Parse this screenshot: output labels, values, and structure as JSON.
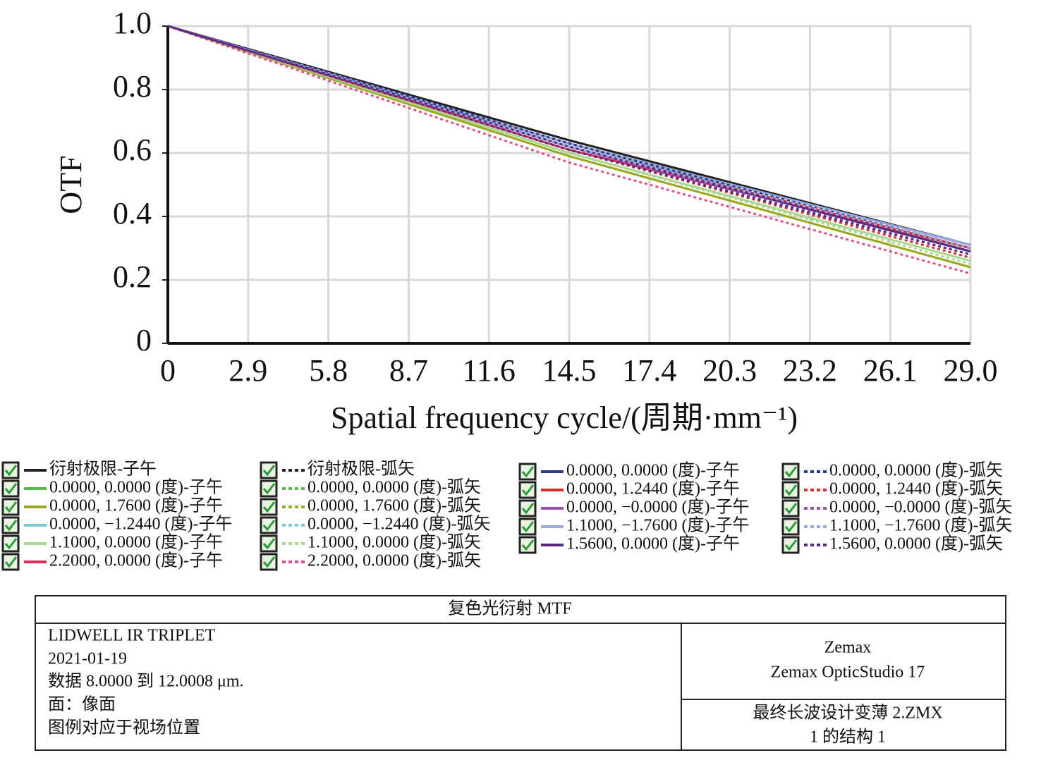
{
  "chart_data": {
    "type": "line",
    "xlabel": "Spatial frequency cycle/(周期·mm⁻¹)",
    "ylabel": "OTF",
    "x": [
      0,
      2.9,
      5.8,
      8.7,
      11.6,
      14.5,
      17.4,
      20.3,
      23.2,
      26.1,
      29
    ],
    "xlim": [
      0,
      29
    ],
    "xticks": [
      0,
      2.9,
      5.8,
      8.7,
      11.6,
      14.5,
      17.4,
      20.3,
      23.2,
      26.1,
      {
        "value": 29,
        "label": "29.0"
      }
    ],
    "ylim": [
      0,
      1
    ],
    "yticks": [
      0,
      0.2,
      0.4,
      0.6,
      0.8,
      {
        "value": 1,
        "label": "1.0"
      }
    ],
    "grid": true,
    "series": [
      {
        "name": "衍射极限-子午",
        "color": "#222222",
        "dashed": false,
        "values": [
          1,
          0.928,
          0.856,
          0.784,
          0.712,
          0.64,
          0.574,
          0.508,
          0.442,
          0.376,
          0.31
        ]
      },
      {
        "name": "0.0000, 0.0000 (度)-子午",
        "color": "#5cb848",
        "dashed": false,
        "values": [
          1,
          0.924,
          0.848,
          0.772,
          0.696,
          0.62,
          0.554,
          0.488,
          0.422,
          0.356,
          0.29
        ]
      },
      {
        "name": "0.0000, 1.7600 (度)-子午",
        "color": "#9aa820",
        "dashed": false,
        "values": [
          1,
          0.918,
          0.836,
          0.754,
          0.672,
          0.59,
          0.52,
          0.45,
          0.38,
          0.31,
          0.24
        ]
      },
      {
        "name": "0.0000, −1.2440 (度)-子午",
        "color": "#7cc8d0",
        "dashed": false,
        "values": [
          1,
          0.926,
          0.852,
          0.778,
          0.704,
          0.63,
          0.562,
          0.494,
          0.426,
          0.358,
          0.29
        ]
      },
      {
        "name": "1.1000, 0.0000 (度)-子午",
        "color": "#a8d890",
        "dashed": false,
        "values": [
          1,
          0.92,
          0.84,
          0.76,
          0.68,
          0.6,
          0.532,
          0.464,
          0.396,
          0.328,
          0.26
        ]
      },
      {
        "name": "2.2000, 0.0000 (度)-子午",
        "color": "#d8305a",
        "dashed": false,
        "values": [
          1,
          0.922,
          0.844,
          0.766,
          0.688,
          0.61,
          0.548,
          0.486,
          0.424,
          0.362,
          0.3
        ]
      },
      {
        "name": "衍射极限-弧矢",
        "color": "#222222",
        "dashed": true,
        "values": [
          1,
          0.928,
          0.856,
          0.784,
          0.712,
          0.64,
          0.574,
          0.508,
          0.442,
          0.376,
          0.31
        ]
      },
      {
        "name": "0.0000, 0.0000 (度)-弧矢",
        "color": "#5cb848",
        "dashed": true,
        "values": [
          1,
          0.924,
          0.848,
          0.772,
          0.696,
          0.62,
          0.554,
          0.488,
          0.422,
          0.356,
          0.29
        ]
      },
      {
        "name": "0.0000, 1.7600 (度)-弧矢",
        "color": "#9aa820",
        "dashed": true,
        "values": [
          1,
          0.918,
          0.836,
          0.754,
          0.672,
          0.59,
          0.52,
          0.45,
          0.38,
          0.31,
          0.24
        ]
      },
      {
        "name": "0.0000, −1.2440 (度)-弧矢",
        "color": "#7cc8d0",
        "dashed": true,
        "values": [
          1,
          0.924,
          0.848,
          0.772,
          0.696,
          0.62,
          0.552,
          0.484,
          0.416,
          0.348,
          0.28
        ]
      },
      {
        "name": "1.1000, 0.0000 (度)-弧矢",
        "color": "#a8d890",
        "dashed": true,
        "values": [
          1,
          0.92,
          0.84,
          0.76,
          0.68,
          0.6,
          0.53,
          0.46,
          0.39,
          0.32,
          0.25
        ]
      },
      {
        "name": "2.2000, 0.0000 (度)-弧矢",
        "color": "#e0508a",
        "dashed": true,
        "values": [
          1,
          0.914,
          0.828,
          0.742,
          0.656,
          0.57,
          0.5,
          0.43,
          0.36,
          0.29,
          0.22
        ]
      },
      {
        "name": "0.0000, 0.0000 (度)-子午",
        "color": "#2a3a90",
        "dashed": false,
        "values": [
          1,
          0.926,
          0.852,
          0.778,
          0.704,
          0.63,
          0.566,
          0.502,
          0.438,
          0.374,
          0.31
        ]
      },
      {
        "name": "0.0000, 1.2440 (度)-子午",
        "color": "#d83030",
        "dashed": false,
        "values": [
          1,
          0.924,
          0.848,
          0.772,
          0.696,
          0.62,
          0.556,
          0.492,
          0.428,
          0.364,
          0.3
        ]
      },
      {
        "name": "0.0000, −0.0000 (度)-子午",
        "color": "#9a50b0",
        "dashed": false,
        "values": [
          1,
          0.924,
          0.848,
          0.772,
          0.696,
          0.62,
          0.554,
          0.488,
          0.422,
          0.356,
          0.29
        ]
      },
      {
        "name": "1.1000, −1.7600 (度)-子午",
        "color": "#9aa8e0",
        "dashed": false,
        "values": [
          1,
          0.926,
          0.852,
          0.778,
          0.704,
          0.63,
          0.566,
          0.502,
          0.438,
          0.374,
          0.31
        ]
      },
      {
        "name": "1.5600, 0.0000 (度)-子午",
        "color": "#5a2a80",
        "dashed": false,
        "values": [
          1,
          0.924,
          0.848,
          0.772,
          0.696,
          0.62,
          0.554,
          0.488,
          0.422,
          0.356,
          0.29
        ]
      },
      {
        "name": "0.0000, 0.0000 (度)-弧矢",
        "color": "#2a3a90",
        "dashed": true,
        "values": [
          1,
          0.926,
          0.852,
          0.778,
          0.704,
          0.63,
          0.564,
          0.498,
          0.432,
          0.366,
          0.3
        ]
      },
      {
        "name": "0.0000, 1.2440 (度)-弧矢",
        "color": "#d83030",
        "dashed": true,
        "values": [
          1,
          0.922,
          0.844,
          0.766,
          0.688,
          0.61,
          0.542,
          0.474,
          0.406,
          0.338,
          0.27
        ]
      },
      {
        "name": "0.0000, −0.0000 (度)-弧矢",
        "color": "#9a50b0",
        "dashed": true,
        "values": [
          1,
          0.924,
          0.848,
          0.772,
          0.696,
          0.62,
          0.552,
          0.484,
          0.416,
          0.348,
          0.28
        ]
      },
      {
        "name": "1.1000, −1.7600 (度)-弧矢",
        "color": "#9aa8e0",
        "dashed": true,
        "values": [
          1,
          0.924,
          0.848,
          0.772,
          0.696,
          0.62,
          0.556,
          0.492,
          0.428,
          0.364,
          0.3
        ]
      },
      {
        "name": "1.5600, 0.0000 (度)-弧矢",
        "color": "#5a2a80",
        "dashed": true,
        "values": [
          1,
          0.922,
          0.844,
          0.766,
          0.688,
          0.61,
          0.544,
          0.478,
          0.412,
          0.346,
          0.28
        ]
      }
    ]
  },
  "info_block": {
    "title": "复色光衍射 MTF",
    "left_lines": [
      "LIDWELL IR TRIPLET",
      "2021-01-19",
      "数据 8.0000 到 12.0008 μm.",
      "面：像面",
      "图例对应于视场位置"
    ],
    "right_top": [
      "Zemax",
      "Zemax OpticStudio 17"
    ],
    "right_bottom": [
      "最终长波设计变薄 2.ZMX",
      "1 的结构 1"
    ]
  }
}
